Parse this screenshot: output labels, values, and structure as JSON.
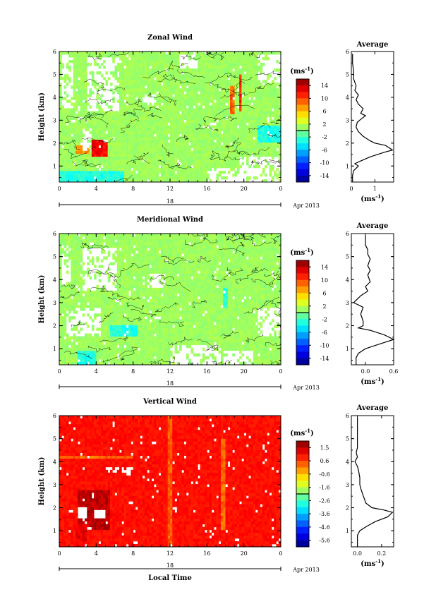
{
  "chart_data": [
    {
      "type": "heatmap",
      "title": "Zonal Wind",
      "ylabel": "Height (km)",
      "xlabel": "",
      "xlim": [
        0,
        24
      ],
      "ylim": [
        0.3,
        6
      ],
      "x_ticks": [
        "0",
        "4",
        "8",
        "12",
        "16",
        "20",
        "0"
      ],
      "y_ticks": [
        "1",
        "2",
        "3",
        "4",
        "5",
        "6"
      ],
      "date_day": "18",
      "date_label": "Apr 2013",
      "colorbar": {
        "unit_base": "(ms",
        "unit_exp": "-1",
        "unit_close": ")",
        "ticks": [
          "14",
          "10",
          "6",
          "2",
          "-2",
          "-6",
          "-10",
          "-14"
        ],
        "range": [
          -16,
          16
        ]
      },
      "field": {
        "background_value": 1,
        "missing_regions": [
          {
            "x": [
              0.3,
              1.5
            ],
            "y": [
              3.5,
              5.9
            ]
          },
          {
            "x": [
              3.0,
              6.5
            ],
            "y": [
              3.4,
              5.8
            ]
          },
          {
            "x": [
              2.5,
              3.5
            ],
            "y": [
              1.7,
              2.7
            ]
          },
          {
            "x": [
              9.0,
              10.5
            ],
            "y": [
              3.6,
              4.2
            ]
          },
          {
            "x": [
              13.0,
              15.0
            ],
            "y": [
              5.3,
              5.9
            ]
          },
          {
            "x": [
              21.5,
              24.0
            ],
            "y": [
              4.6,
              5.9
            ]
          },
          {
            "x": [
              16.0,
              22.0
            ],
            "y": [
              0.3,
              0.9
            ]
          },
          {
            "x": [
              19.5,
              24.0
            ],
            "y": [
              0.3,
              1.4
            ]
          }
        ],
        "features": [
          {
            "x": [
              3.4,
              5.2
            ],
            "y": [
              1.4,
              2.2
            ],
            "value": 12
          },
          {
            "x": [
              1.8,
              3.2
            ],
            "y": [
              1.5,
              1.9
            ],
            "value": 7
          },
          {
            "x": [
              18.5,
              18.9
            ],
            "y": [
              3.3,
              4.5
            ],
            "value": 9
          },
          {
            "x": [
              19.4,
              19.8
            ],
            "y": [
              3.4,
              5.0
            ],
            "value": 11
          },
          {
            "x": [
              0.0,
              7.0
            ],
            "y": [
              0.3,
              0.8
            ],
            "value": -3
          },
          {
            "x": [
              21.5,
              24.0
            ],
            "y": [
              2.0,
              2.8
            ],
            "value": -3
          }
        ]
      },
      "profile": {
        "title": "Average",
        "xlim": [
          0,
          1.8
        ],
        "x_ticks": [
          "0",
          "1"
        ],
        "x_tick_values": [
          0,
          1
        ],
        "xlabel_base": "(ms",
        "xlabel_exp": "-1",
        "xlabel_close": ")",
        "height": [
          0.3,
          0.6,
          0.8,
          1.0,
          1.1,
          1.2,
          1.4,
          1.6,
          1.7,
          1.8,
          1.9,
          2.0,
          2.1,
          2.3,
          2.5,
          2.7,
          2.9,
          3.0,
          3.2,
          3.3,
          3.5,
          3.7,
          3.9,
          4.1,
          4.3,
          4.5,
          4.8,
          5.1,
          5.5,
          5.9
        ],
        "values": [
          0.05,
          0.05,
          0.1,
          0.3,
          0.15,
          0.35,
          0.8,
          1.4,
          1.75,
          1.6,
          1.45,
          1.0,
          0.8,
          0.5,
          0.3,
          0.2,
          0.25,
          0.35,
          0.6,
          0.4,
          0.5,
          0.3,
          0.2,
          0.3,
          0.15,
          0.2,
          0.1,
          0.1,
          0.05,
          0.05
        ]
      }
    },
    {
      "type": "heatmap",
      "title": "Meridional Wind",
      "ylabel": "Height (km)",
      "xlabel": "",
      "xlim": [
        0,
        24
      ],
      "ylim": [
        0.3,
        6
      ],
      "x_ticks": [
        "0",
        "4",
        "8",
        "12",
        "16",
        "20",
        "0"
      ],
      "y_ticks": [
        "1",
        "2",
        "3",
        "4",
        "5",
        "6"
      ],
      "date_day": "18",
      "date_label": "Apr 2013",
      "colorbar": {
        "unit_base": "(ms",
        "unit_exp": "-1",
        "unit_close": ")",
        "ticks": [
          "14",
          "10",
          "6",
          "2",
          "-2",
          "-6",
          "-10",
          "-14"
        ],
        "range": [
          -16,
          16
        ]
      },
      "field": {
        "background_value": 1,
        "missing_regions": [
          {
            "x": [
              0.3,
              1.3
            ],
            "y": [
              3.8,
              5.5
            ]
          },
          {
            "x": [
              2.6,
              6.3
            ],
            "y": [
              3.5,
              5.4
            ]
          },
          {
            "x": [
              9.5,
              11.5
            ],
            "y": [
              3.7,
              4.3
            ]
          },
          {
            "x": [
              0.8,
              4.5
            ],
            "y": [
              1.5,
              2.8
            ]
          },
          {
            "x": [
              12.0,
              17.5
            ],
            "y": [
              0.3,
              1.2
            ]
          },
          {
            "x": [
              17.8,
              21.0
            ],
            "y": [
              0.3,
              0.9
            ]
          },
          {
            "x": [
              21.5,
              24.0
            ],
            "y": [
              1.5,
              2.8
            ]
          }
        ],
        "features": [
          {
            "x": [
              5.5,
              8.5
            ],
            "y": [
              1.5,
              2.0
            ],
            "value": -3
          },
          {
            "x": [
              2.0,
              4.0
            ],
            "y": [
              0.3,
              0.9
            ],
            "value": -3
          },
          {
            "x": [
              17.8,
              18.3
            ],
            "y": [
              2.8,
              3.6
            ],
            "value": -3
          }
        ]
      },
      "profile": {
        "title": "Average",
        "xlim": [
          -0.3,
          0.6
        ],
        "x_ticks": [
          "0.0",
          "0.6"
        ],
        "x_tick_values": [
          0,
          0.6
        ],
        "xlabel_base": "(ms",
        "xlabel_exp": "-1",
        "xlabel_close": ")",
        "height": [
          0.3,
          0.6,
          0.8,
          1.0,
          1.2,
          1.4,
          1.6,
          1.8,
          1.9,
          2.0,
          2.2,
          2.5,
          2.8,
          3.0,
          3.1,
          3.3,
          3.5,
          3.7,
          3.9,
          4.2,
          4.4,
          4.6,
          4.9,
          5.1,
          5.3,
          5.5,
          5.7,
          5.9
        ],
        "values": [
          -0.2,
          -0.2,
          -0.15,
          0.0,
          0.3,
          0.6,
          0.4,
          0.1,
          -0.15,
          -0.05,
          -0.05,
          -0.1,
          -0.05,
          -0.25,
          -0.2,
          -0.1,
          0.05,
          0.0,
          0.1,
          0.05,
          0.1,
          0.05,
          0.1,
          0.05,
          0.05,
          0.0,
          0.0,
          0.0
        ]
      }
    },
    {
      "type": "heatmap",
      "title": "Vertical Wind",
      "ylabel": "Height (km)",
      "xlabel": "Local Time",
      "xlim": [
        0,
        24
      ],
      "ylim": [
        0.3,
        6
      ],
      "x_ticks": [
        "0",
        "4",
        "8",
        "12",
        "16",
        "20",
        "0"
      ],
      "y_ticks": [
        "1",
        "2",
        "3",
        "4",
        "5",
        "6"
      ],
      "date_day": "18",
      "date_label": "Apr 2013",
      "colorbar": {
        "unit_base": "(ms",
        "unit_exp": "-1",
        "unit_close": ")",
        "ticks": [
          "1.5",
          "0.6",
          "-0.6",
          "-1.6",
          "-2.6",
          "-3.6",
          "-4.6",
          "-5.6"
        ],
        "range": [
          -6,
          2
        ]
      },
      "field": {
        "background_value": 0.9,
        "missing_regions": [
          {
            "x": [
              5.0,
              8.0
            ],
            "y": [
              3.5,
              3.8
            ]
          },
          {
            "x": [
              2.0,
              3.0
            ],
            "y": [
              1.6,
              2.0
            ]
          },
          {
            "x": [
              3.8,
              5.0
            ],
            "y": [
              1.6,
              1.9
            ]
          }
        ],
        "features": [
          {
            "x": [
              2.0,
              5.5
            ],
            "y": [
              1.1,
              2.8
            ],
            "value": 1.5
          },
          {
            "x": [
              1.8,
              3.0
            ],
            "y": [
              0.5,
              1.3
            ],
            "value": 1.2
          },
          {
            "x": [
              0.0,
              8.0
            ],
            "y": [
              4.15,
              4.3
            ],
            "value": 0.2
          },
          {
            "x": [
              17.5,
              18.0
            ],
            "y": [
              1.0,
              5.0
            ],
            "value": 0.2
          },
          {
            "x": [
              11.8,
              12.2
            ],
            "y": [
              0.3,
              6.0
            ],
            "value": 0.3
          }
        ]
      },
      "profile": {
        "title": "Average",
        "xlim": [
          -0.05,
          0.3
        ],
        "x_ticks": [
          "0.0",
          "0.2"
        ],
        "x_tick_values": [
          0,
          0.2
        ],
        "xlabel_base": "(ms",
        "xlabel_exp": "-1",
        "xlabel_close": ")",
        "height": [
          0.3,
          0.6,
          0.8,
          1.0,
          1.2,
          1.4,
          1.6,
          1.8,
          1.9,
          2.0,
          2.2,
          2.5,
          2.8,
          3.0,
          3.3,
          3.6,
          3.8,
          4.0,
          4.2,
          4.4,
          4.6,
          4.9,
          5.2,
          5.5,
          5.9
        ],
        "values": [
          0.0,
          0.0,
          0.0,
          0.02,
          0.08,
          0.15,
          0.25,
          0.29,
          0.22,
          0.12,
          0.07,
          0.05,
          0.03,
          0.02,
          0.02,
          0.01,
          0.0,
          -0.02,
          0.0,
          -0.01,
          0.0,
          0.0,
          0.0,
          0.0,
          0.0
        ]
      }
    }
  ]
}
